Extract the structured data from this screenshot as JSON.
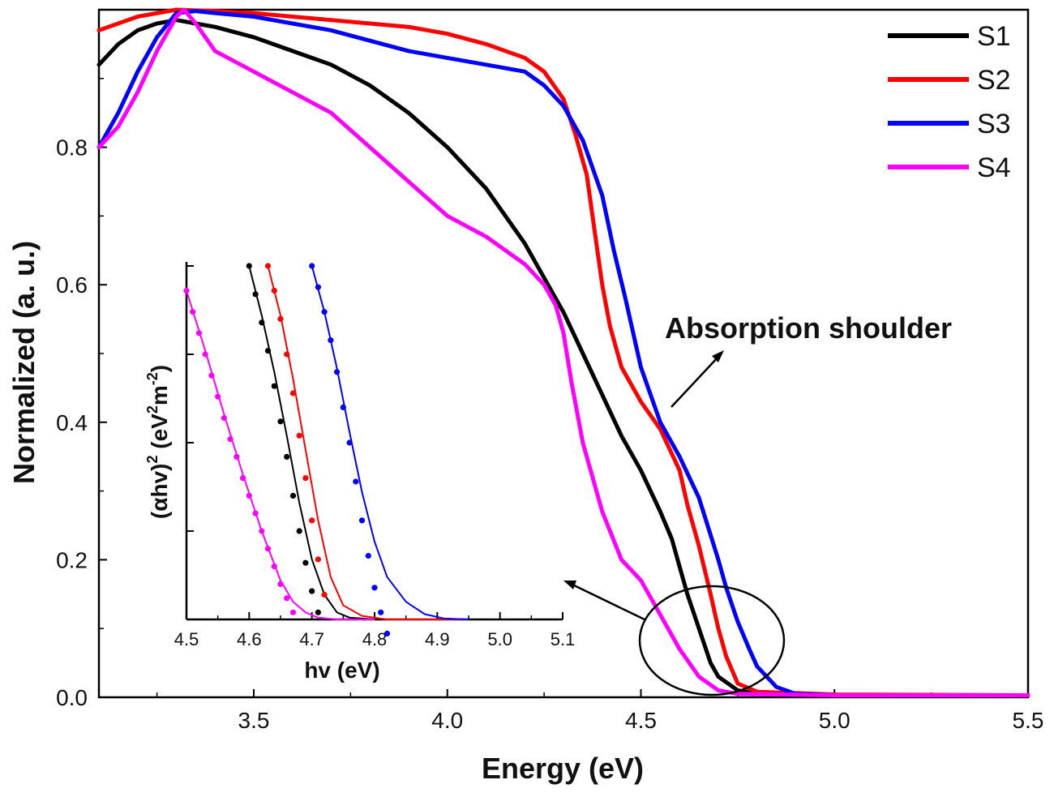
{
  "chart_data": [
    {
      "type": "line",
      "title": "",
      "xlabel": "Energy (eV)",
      "ylabel": "Normalized (a. u.)",
      "xlim": [
        3.1,
        5.5
      ],
      "ylim": [
        0.0,
        1.0
      ],
      "xticks": [
        3.5,
        4.0,
        4.5,
        5.0,
        5.5
      ],
      "xtick_labels": [
        "3.5",
        "4.0",
        "4.5",
        "5.0",
        "5.5"
      ],
      "yticks": [
        0.0,
        0.2,
        0.4,
        0.6,
        0.8
      ],
      "ytick_labels": [
        "0.0",
        "0.2",
        "0.4",
        "0.6",
        "0.8"
      ],
      "grid": false,
      "legend_position": "top-right",
      "series": [
        {
          "name": "S1",
          "color": "#000000",
          "x": [
            3.1,
            3.15,
            3.2,
            3.25,
            3.3,
            3.35,
            3.4,
            3.5,
            3.6,
            3.7,
            3.8,
            3.9,
            4.0,
            4.1,
            4.2,
            4.25,
            4.3,
            4.35,
            4.4,
            4.45,
            4.5,
            4.55,
            4.58,
            4.6,
            4.62,
            4.65,
            4.68,
            4.7,
            4.75,
            4.8,
            5.0,
            5.5
          ],
          "y": [
            0.92,
            0.95,
            0.97,
            0.98,
            0.985,
            0.98,
            0.975,
            0.96,
            0.94,
            0.92,
            0.89,
            0.85,
            0.8,
            0.74,
            0.66,
            0.61,
            0.56,
            0.5,
            0.44,
            0.38,
            0.33,
            0.27,
            0.23,
            0.19,
            0.15,
            0.1,
            0.05,
            0.03,
            0.01,
            0.005,
            0.003,
            0.003
          ]
        },
        {
          "name": "S2",
          "color": "#ff0000",
          "x": [
            3.1,
            3.2,
            3.3,
            3.4,
            3.5,
            3.6,
            3.7,
            3.8,
            3.9,
            4.0,
            4.1,
            4.2,
            4.25,
            4.3,
            4.33,
            4.36,
            4.38,
            4.4,
            4.42,
            4.45,
            4.5,
            4.55,
            4.6,
            4.62,
            4.65,
            4.68,
            4.7,
            4.72,
            4.75,
            4.8,
            5.0,
            5.5
          ],
          "y": [
            0.97,
            0.99,
            1.0,
            0.998,
            0.995,
            0.99,
            0.985,
            0.98,
            0.975,
            0.965,
            0.95,
            0.93,
            0.91,
            0.87,
            0.82,
            0.76,
            0.68,
            0.6,
            0.54,
            0.48,
            0.43,
            0.39,
            0.33,
            0.28,
            0.22,
            0.15,
            0.1,
            0.06,
            0.02,
            0.008,
            0.004,
            0.003
          ]
        },
        {
          "name": "S3",
          "color": "#0000ff",
          "x": [
            3.1,
            3.15,
            3.2,
            3.25,
            3.3,
            3.35,
            3.4,
            3.5,
            3.6,
            3.7,
            3.8,
            3.9,
            4.0,
            4.1,
            4.2,
            4.25,
            4.3,
            4.35,
            4.4,
            4.43,
            4.46,
            4.5,
            4.55,
            4.6,
            4.65,
            4.7,
            4.72,
            4.75,
            4.78,
            4.8,
            4.85,
            4.9,
            5.0,
            5.5
          ],
          "y": [
            0.8,
            0.85,
            0.91,
            0.96,
            0.995,
            0.998,
            0.995,
            0.99,
            0.98,
            0.97,
            0.955,
            0.94,
            0.93,
            0.92,
            0.91,
            0.89,
            0.86,
            0.81,
            0.73,
            0.65,
            0.58,
            0.48,
            0.4,
            0.35,
            0.29,
            0.2,
            0.16,
            0.11,
            0.07,
            0.045,
            0.015,
            0.005,
            0.003,
            0.003
          ]
        },
        {
          "name": "S4",
          "color": "#ff00ff",
          "x": [
            3.1,
            3.15,
            3.2,
            3.25,
            3.3,
            3.32,
            3.35,
            3.4,
            3.5,
            3.6,
            3.7,
            3.8,
            3.9,
            4.0,
            4.1,
            4.2,
            4.25,
            4.28,
            4.3,
            4.32,
            4.35,
            4.4,
            4.45,
            4.5,
            4.55,
            4.6,
            4.65,
            4.7,
            4.75,
            5.0,
            5.5
          ],
          "y": [
            0.8,
            0.83,
            0.88,
            0.94,
            0.99,
            1.0,
            0.98,
            0.94,
            0.91,
            0.88,
            0.85,
            0.8,
            0.75,
            0.7,
            0.67,
            0.63,
            0.6,
            0.57,
            0.53,
            0.46,
            0.37,
            0.27,
            0.2,
            0.17,
            0.12,
            0.07,
            0.03,
            0.01,
            0.005,
            0.003,
            0.003
          ]
        }
      ],
      "annotations": [
        {
          "text": "Absorption shoulder"
        }
      ]
    },
    {
      "type": "line",
      "title": "",
      "xlabel": "hv (eV)",
      "ylabel_main": "(αhv)",
      "ylabel_sup1": "2",
      "ylabel_units": "(eV",
      "ylabel_sup2": "2",
      "ylabel_units2": "m",
      "ylabel_sup3": "-2",
      "ylabel_close": ")",
      "xlim": [
        4.5,
        5.1
      ],
      "ylim": [
        0.0,
        1.0
      ],
      "xticks": [
        4.5,
        4.6,
        4.7,
        4.8,
        4.9,
        5.0,
        5.1
      ],
      "xtick_labels": [
        "4.5",
        "4.6",
        "4.7",
        "4.8",
        "4.9",
        "5.0",
        "5.1"
      ],
      "yticks": [
        0.0,
        0.25,
        0.5,
        0.75,
        1.0
      ],
      "series": [
        {
          "name": "S1",
          "color": "#000000",
          "data_x": [
            4.6,
            4.61,
            4.62,
            4.63,
            4.64,
            4.65,
            4.66,
            4.67,
            4.68,
            4.69,
            4.7,
            4.71
          ],
          "data_y": [
            1.0,
            0.92,
            0.84,
            0.76,
            0.66,
            0.56,
            0.46,
            0.35,
            0.25,
            0.16,
            0.08,
            0.02
          ],
          "fit_x": [
            4.6,
            4.62,
            4.64,
            4.66,
            4.68,
            4.7,
            4.72,
            4.74,
            4.76,
            4.8,
            4.95
          ],
          "fit_y": [
            1.0,
            0.86,
            0.7,
            0.52,
            0.33,
            0.17,
            0.07,
            0.02,
            0.005,
            0.0,
            0.0
          ]
        },
        {
          "name": "S2",
          "color": "#ff0000",
          "data_x": [
            4.63,
            4.64,
            4.65,
            4.66,
            4.67,
            4.68,
            4.69,
            4.7,
            4.71,
            4.72
          ],
          "data_y": [
            1.0,
            0.93,
            0.85,
            0.75,
            0.64,
            0.52,
            0.4,
            0.28,
            0.17,
            0.07
          ],
          "fit_x": [
            4.63,
            4.65,
            4.67,
            4.69,
            4.71,
            4.73,
            4.75,
            4.78,
            4.82,
            4.95
          ],
          "fit_y": [
            1.0,
            0.86,
            0.68,
            0.48,
            0.28,
            0.12,
            0.04,
            0.01,
            0.0,
            0.0
          ]
        },
        {
          "name": "S3",
          "color": "#0000ff",
          "data_x": [
            4.7,
            4.71,
            4.72,
            4.73,
            4.74,
            4.75,
            4.76,
            4.77,
            4.78,
            4.79,
            4.8,
            4.81,
            4.82
          ],
          "data_y": [
            1.0,
            0.94,
            0.87,
            0.79,
            0.7,
            0.6,
            0.5,
            0.39,
            0.28,
            0.18,
            0.09,
            0.02,
            -0.04
          ],
          "fit_x": [
            4.7,
            4.72,
            4.74,
            4.76,
            4.78,
            4.8,
            4.82,
            4.85,
            4.88,
            4.91,
            4.95
          ],
          "fit_y": [
            1.0,
            0.87,
            0.71,
            0.53,
            0.36,
            0.22,
            0.12,
            0.05,
            0.015,
            0.003,
            0.0
          ]
        },
        {
          "name": "S4",
          "color": "#ff00ff",
          "data_x": [
            4.5,
            4.51,
            4.52,
            4.53,
            4.54,
            4.55,
            4.56,
            4.57,
            4.58,
            4.59,
            4.6,
            4.61,
            4.62,
            4.63,
            4.64,
            4.65,
            4.66,
            4.67
          ],
          "data_y": [
            0.93,
            0.87,
            0.81,
            0.75,
            0.69,
            0.63,
            0.57,
            0.51,
            0.46,
            0.4,
            0.35,
            0.3,
            0.25,
            0.2,
            0.15,
            0.1,
            0.06,
            0.02
          ],
          "fit_x": [
            4.5,
            4.53,
            4.56,
            4.59,
            4.62,
            4.65,
            4.67,
            4.69,
            4.71,
            4.74,
            4.8
          ],
          "fit_y": [
            0.93,
            0.76,
            0.58,
            0.41,
            0.25,
            0.11,
            0.05,
            0.02,
            0.005,
            0.0,
            0.0
          ]
        }
      ]
    }
  ]
}
